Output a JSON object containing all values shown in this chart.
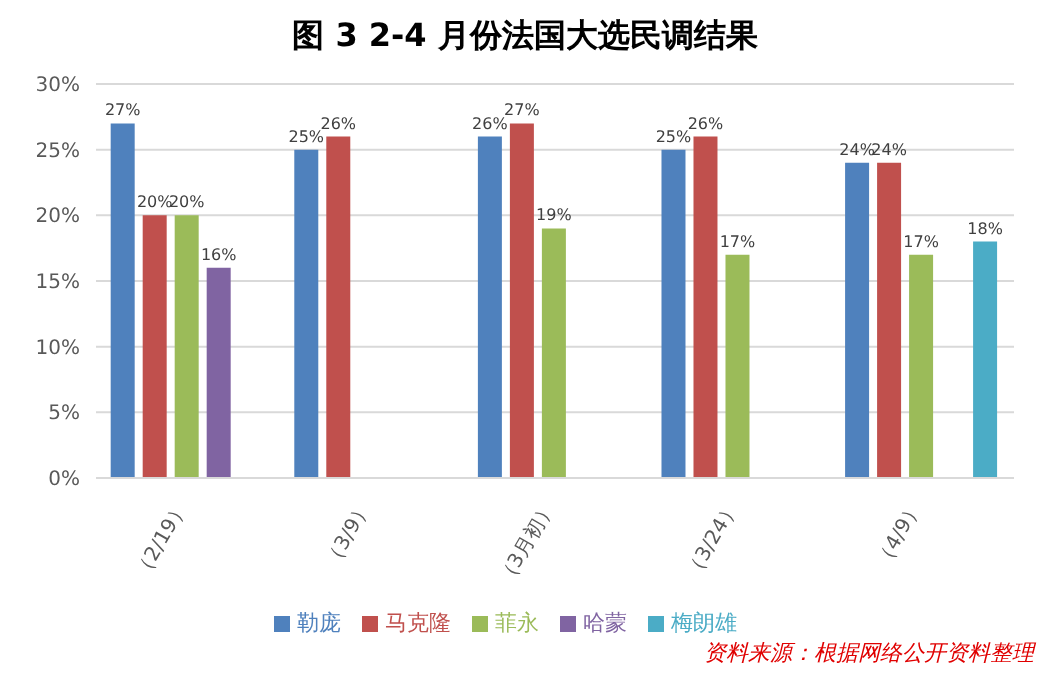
{
  "chart_data": {
    "type": "bar",
    "title": "图 3 2-4 月份法国大选民调结果",
    "categories": [
      "（2/19）",
      "（3/9）",
      "（3月初）",
      "（3/24）",
      "（4/9）"
    ],
    "series": [
      {
        "name": "勒庞",
        "color": "#4f81bd",
        "values": [
          27,
          25,
          26,
          25,
          24
        ],
        "value_labels": [
          "27%",
          "25%",
          "26%",
          "25%",
          "24%"
        ]
      },
      {
        "name": "马克隆",
        "color": "#c0504d",
        "values": [
          20,
          26,
          27,
          26,
          24
        ],
        "value_labels": [
          "20%",
          "26%",
          "27%",
          "26%",
          "24%"
        ]
      },
      {
        "name": "菲永",
        "color": "#9bbb59",
        "values": [
          20,
          null,
          19,
          17,
          17
        ],
        "value_labels": [
          "20%",
          null,
          "19%",
          "17%",
          "17%"
        ]
      },
      {
        "name": "哈蒙",
        "color": "#8064a2",
        "values": [
          16,
          null,
          null,
          null,
          null
        ],
        "value_labels": [
          "16%",
          null,
          null,
          null,
          null
        ]
      },
      {
        "name": "梅朗雄",
        "color": "#4bacc6",
        "values": [
          null,
          null,
          null,
          null,
          18
        ],
        "value_labels": [
          null,
          null,
          null,
          null,
          "18%"
        ]
      }
    ],
    "ylim": [
      0,
      30
    ],
    "yticks": [
      {
        "value": 0,
        "label": "0%"
      },
      {
        "value": 5,
        "label": "5%"
      },
      {
        "value": 10,
        "label": "10%"
      },
      {
        "value": 15,
        "label": "15%"
      },
      {
        "value": 20,
        "label": "20%"
      },
      {
        "value": 25,
        "label": "25%"
      },
      {
        "value": 30,
        "label": "30%"
      }
    ],
    "grid": "y",
    "legend": "bottom",
    "annotations": [
      "资料来源：根据网络公开资料整理"
    ]
  }
}
